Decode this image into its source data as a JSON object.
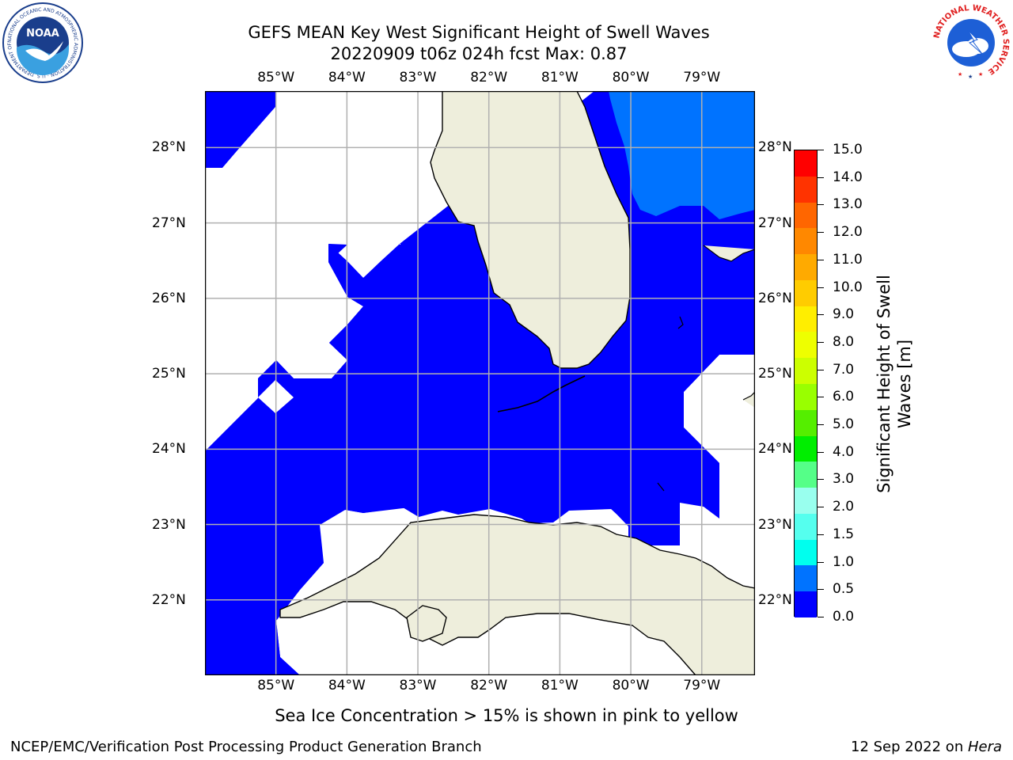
{
  "title": {
    "line1": "GEFS MEAN Key West Significant Height of Swell Waves",
    "line2": "20220909 t06z 024h fcst   Max: 0.87"
  },
  "map": {
    "lon_labels": [
      "85°W",
      "84°W",
      "83°W",
      "82°W",
      "81°W",
      "80°W",
      "79°W"
    ],
    "lat_labels": [
      "28°N",
      "27°N",
      "26°N",
      "25°N",
      "24°N",
      "23°N",
      "22°N"
    ],
    "extent": {
      "lon": [
        -86.0,
        -78.25
      ],
      "lat": [
        21.0,
        28.75
      ]
    },
    "colors": {
      "land": "#eeeedc",
      "swell_0_05": "#0000ff",
      "swell_05_10": "#0073ff",
      "grid": "#b0b0b0"
    }
  },
  "colorbar": {
    "title_line1": "Significant Height of Swell",
    "title_line2": "Waves [m]",
    "ticks": [
      "15.0",
      "14.0",
      "13.0",
      "12.0",
      "11.0",
      "10.0",
      "9.0",
      "8.0",
      "7.0",
      "6.0",
      "5.0",
      "4.0",
      "3.0",
      "2.0",
      "1.5",
      "1.0",
      "0.5",
      "0.0"
    ],
    "colors": [
      "#ff0000",
      "#ff3300",
      "#ff6600",
      "#ff8800",
      "#ffaa00",
      "#ffcc00",
      "#ffee00",
      "#eeff00",
      "#ccff00",
      "#99ff00",
      "#55ee00",
      "#00ee00",
      "#55ff88",
      "#99ffee",
      "#55ffee",
      "#00ffee",
      "#0073ff",
      "#0000ff"
    ]
  },
  "footnote": "Sea Ice Concentration > 15% is shown in pink to yellow",
  "footer": {
    "left": "NCEP/EMC/Verification Post Processing Product Generation Branch",
    "date": "12 Sep 2022 on ",
    "host": "Hera"
  },
  "logos": {
    "noaa": "NOAA",
    "noaa_ring": "NATIONAL OCEANIC AND ATMOSPHERIC ADMINISTRATION · U.S. DEPARTMENT OF COMMERCE",
    "nws_ring": "NATIONAL WEATHER SERVICE"
  }
}
